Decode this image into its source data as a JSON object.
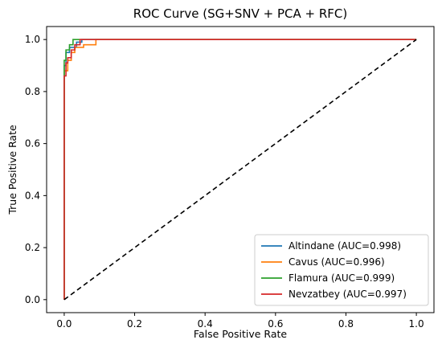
{
  "chart_data": {
    "type": "line",
    "title": "ROC Curve (SG+SNV + PCA + RFC)",
    "xlabel": "False Positive Rate",
    "ylabel": "True Positive Rate",
    "xlim": [
      -0.05,
      1.05
    ],
    "ylim": [
      -0.05,
      1.05
    ],
    "xticks": [
      0.0,
      0.2,
      0.4,
      0.6,
      0.8,
      1.0
    ],
    "xtick_labels": [
      "0.0",
      "0.2",
      "0.4",
      "0.6",
      "0.8",
      "1.0"
    ],
    "yticks": [
      0.0,
      0.2,
      0.4,
      0.6,
      0.8,
      1.0
    ],
    "ytick_labels": [
      "0.0",
      "0.2",
      "0.4",
      "0.6",
      "0.8",
      "1.0"
    ],
    "grid": false,
    "legend_position": "bottom-right",
    "series": [
      {
        "name": "Altindane (AUC=0.998)",
        "color": "#1f77b4",
        "x": [
          0,
          0,
          0.005,
          0.005,
          0.015,
          0.015,
          0.035,
          0.035,
          0.05,
          0.05,
          1.0
        ],
        "y": [
          0,
          0.9,
          0.9,
          0.95,
          0.95,
          0.97,
          0.97,
          0.99,
          0.99,
          1.0,
          1.0
        ]
      },
      {
        "name": "Cavus (AUC=0.996)",
        "color": "#ff7f0e",
        "x": [
          0,
          0,
          0.01,
          0.01,
          0.02,
          0.02,
          0.03,
          0.03,
          0.055,
          0.055,
          0.09,
          0.09,
          1.0
        ],
        "y": [
          0,
          0.88,
          0.88,
          0.92,
          0.92,
          0.95,
          0.95,
          0.97,
          0.97,
          0.98,
          0.98,
          1.0,
          1.0
        ]
      },
      {
        "name": "Flamura (AUC=0.999)",
        "color": "#2ca02c",
        "x": [
          0,
          0,
          0.005,
          0.005,
          0.015,
          0.015,
          0.025,
          0.025,
          1.0
        ],
        "y": [
          0,
          0.92,
          0.92,
          0.96,
          0.96,
          0.98,
          0.98,
          1.0,
          1.0
        ]
      },
      {
        "name": "Nevzatbey (AUC=0.997)",
        "color": "#d62728",
        "x": [
          0,
          0,
          0.005,
          0.005,
          0.01,
          0.01,
          0.02,
          0.02,
          0.03,
          0.03,
          0.045,
          0.045,
          1.0
        ],
        "y": [
          0,
          0.86,
          0.86,
          0.91,
          0.91,
          0.93,
          0.93,
          0.96,
          0.96,
          0.98,
          0.98,
          1.0,
          1.0
        ]
      }
    ],
    "reference_line": {
      "x": [
        0,
        1
      ],
      "y": [
        0,
        1
      ],
      "color": "#000000",
      "style": "dashed"
    }
  }
}
